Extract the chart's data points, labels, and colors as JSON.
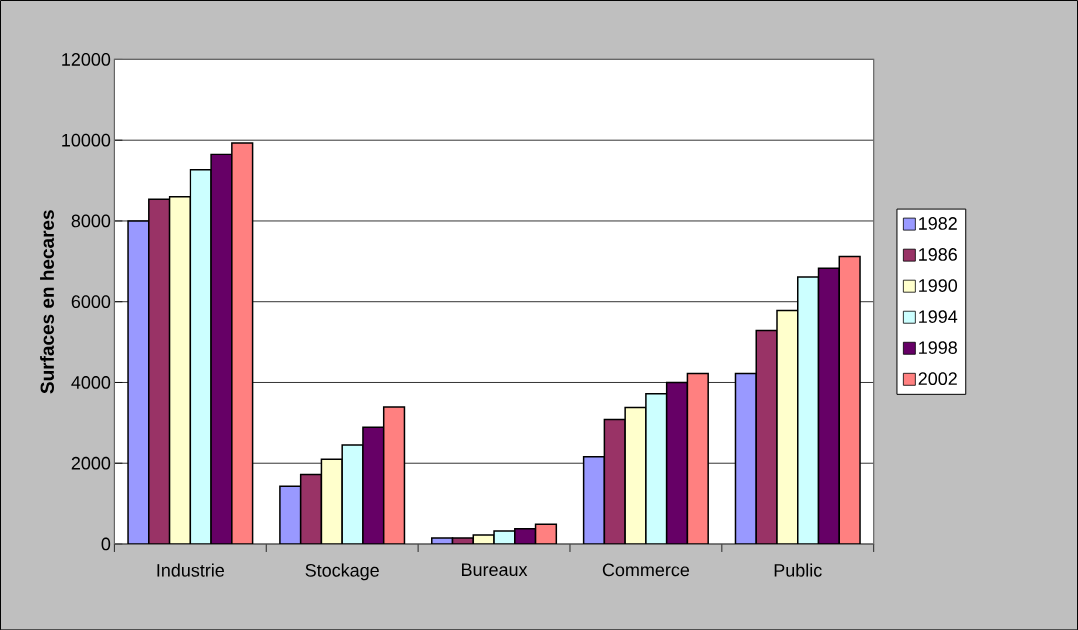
{
  "chart_data": {
    "type": "bar",
    "ylabel": "Surfaces en hecares",
    "categories": [
      "Industrie",
      "Stockage",
      "Bureaux",
      "Commerce",
      "Public"
    ],
    "series": [
      {
        "name": "1982",
        "color": "#9999ff",
        "values": [
          8000,
          1430,
          150,
          2160,
          4220
        ]
      },
      {
        "name": "1986",
        "color": "#993366",
        "values": [
          8540,
          1720,
          150,
          3080,
          5290
        ]
      },
      {
        "name": "1990",
        "color": "#ffffcc",
        "values": [
          8600,
          2100,
          220,
          3380,
          5780
        ]
      },
      {
        "name": "1994",
        "color": "#ccffff",
        "values": [
          9270,
          2450,
          320,
          3720,
          6610
        ]
      },
      {
        "name": "1998",
        "color": "#660066",
        "values": [
          9650,
          2890,
          380,
          4000,
          6830
        ]
      },
      {
        "name": "2002",
        "color": "#ff8080",
        "values": [
          9930,
          3390,
          490,
          4220,
          7120
        ]
      }
    ],
    "ylim": [
      0,
      12000
    ],
    "yticks": [
      0,
      2000,
      4000,
      6000,
      8000,
      10000,
      12000
    ],
    "grid": "y",
    "legend": "right"
  }
}
